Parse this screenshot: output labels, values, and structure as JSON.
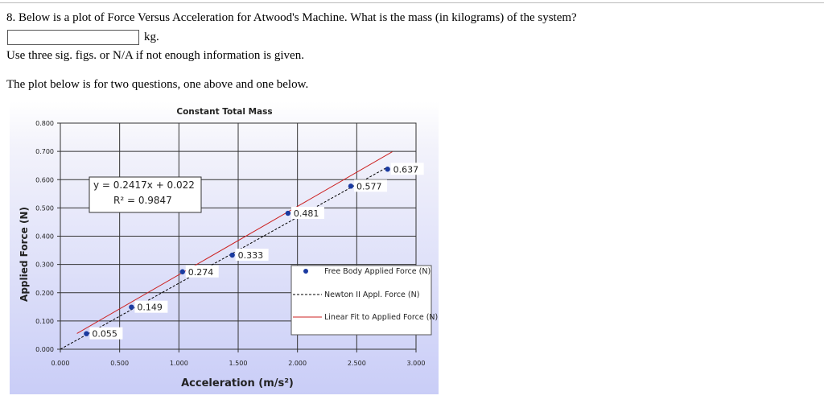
{
  "question": {
    "text": "8. Below is a plot of Force Versus Acceleration for Atwood's Machine. What is the mass (in kilograms) of the system?",
    "answer_value": "",
    "unit": "kg.",
    "instructions": "Use three sig. figs. or N/A if not enough information is given.",
    "note": "The plot below is for two questions, one above and one below."
  },
  "chart_data": {
    "type": "scatter",
    "title": "Constant Total Mass",
    "xlabel": "Acceleration (m/s²)",
    "ylabel": "Applied Force (N)",
    "xlim": [
      0,
      3
    ],
    "ylim": [
      0,
      0.8
    ],
    "xticks": [
      "0.000",
      "0.500",
      "1.000",
      "1.500",
      "2.000",
      "2.500",
      "3.000"
    ],
    "yticks": [
      "0.000",
      "0.100",
      "0.200",
      "0.300",
      "0.400",
      "0.500",
      "0.600",
      "0.700",
      "0.800"
    ],
    "grid": true,
    "series": [
      {
        "name": "Free Body Applied Force (N)",
        "x": [
          0.22,
          0.6,
          1.03,
          1.45,
          1.92,
          2.45
        ],
        "y": [
          0.055,
          0.149,
          0.274,
          0.333,
          0.481,
          0.577
        ],
        "labels": [
          "0.055",
          "0.149",
          "0.274",
          "0.333",
          "0.481",
          "0.577"
        ],
        "color": "#1a3aa0"
      },
      {
        "name": "Newton II Appl. Force (N)",
        "style": "dashed",
        "color": "#000000"
      },
      {
        "name": "Linear Fit to Applied Force (N)",
        "style": "solid",
        "color": "#cc2222"
      }
    ],
    "extra_point": {
      "x": 2.76,
      "y": 0.637,
      "label": "0.637"
    },
    "equation": "y = 0.2417x + 0.022",
    "r2": "R² = 0.9847",
    "legend_position": "right"
  }
}
